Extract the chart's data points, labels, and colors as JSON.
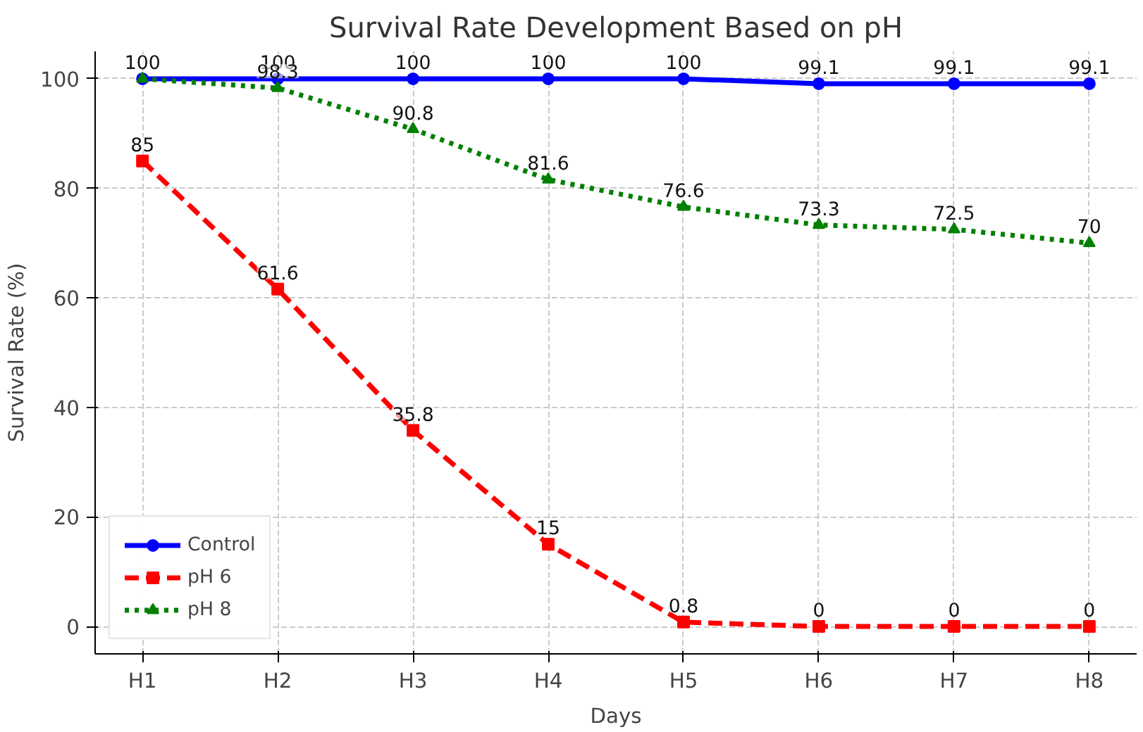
{
  "chart_data": {
    "type": "line",
    "title": "Survival Rate Development Based on pH",
    "xlabel": "Days",
    "ylabel": "Survival Rate (%)",
    "categories": [
      "H1",
      "H2",
      "H3",
      "H4",
      "H5",
      "H6",
      "H7",
      "H8"
    ],
    "series": [
      {
        "name": "Control",
        "color": "#0000ff",
        "values": [
          100,
          100,
          100,
          100,
          100,
          99.1,
          99.1,
          99.1
        ],
        "marker": "circle",
        "line_style": "solid"
      },
      {
        "name": "pH 6",
        "color": "#ff0000",
        "values": [
          85,
          61.6,
          35.8,
          15,
          0.8,
          0,
          0,
          0
        ],
        "marker": "square",
        "line_style": "dashed"
      },
      {
        "name": "pH 8",
        "color": "#008000",
        "values": [
          100,
          98.3,
          90.8,
          81.6,
          76.6,
          73.3,
          72.5,
          70
        ],
        "value_labels": [
          null,
          "98.3",
          "90.8",
          "81.6",
          "76.6",
          "73.3",
          "72.5",
          "70"
        ],
        "marker": "triangle",
        "line_style": "dotted"
      }
    ],
    "ylim": [
      -5,
      105
    ],
    "yticks": [
      0,
      20,
      40,
      60,
      80,
      100
    ],
    "grid": true,
    "legend": "bottom left",
    "data_labels": true
  }
}
